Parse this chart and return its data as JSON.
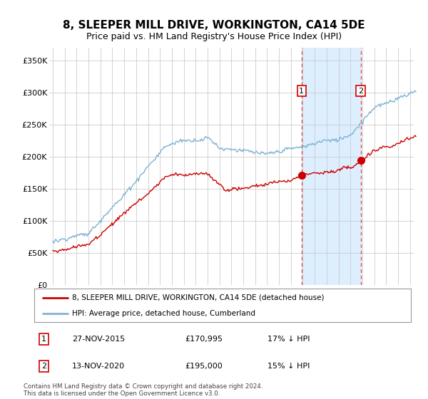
{
  "title": "8, SLEEPER MILL DRIVE, WORKINGTON, CA14 5DE",
  "subtitle": "Price paid vs. HM Land Registry's House Price Index (HPI)",
  "ylabel_ticks": [
    "£0",
    "£50K",
    "£100K",
    "£150K",
    "£200K",
    "£250K",
    "£300K",
    "£350K"
  ],
  "ylabel_values": [
    0,
    50000,
    100000,
    150000,
    200000,
    250000,
    300000,
    350000
  ],
  "ylim": [
    0,
    370000
  ],
  "xlim_start": 1994.7,
  "xlim_end": 2025.8,
  "purchase1_date": 2015.9,
  "purchase1_price": 170995,
  "purchase2_date": 2020.87,
  "purchase2_price": 195000,
  "hpi_color": "#7fb3d3",
  "price_color": "#cc0000",
  "shaded_region_color": "#ddeeff",
  "background_color": "#ffffff",
  "grid_color": "#cccccc",
  "legend_line1": "8, SLEEPER MILL DRIVE, WORKINGTON, CA14 5DE (detached house)",
  "legend_line2": "HPI: Average price, detached house, Cumberland",
  "table_row1_num": "1",
  "table_row1_date": "27-NOV-2015",
  "table_row1_price": "£170,995",
  "table_row1_hpi": "17% ↓ HPI",
  "table_row2_num": "2",
  "table_row2_date": "13-NOV-2020",
  "table_row2_price": "£195,000",
  "table_row2_hpi": "15% ↓ HPI",
  "footer": "Contains HM Land Registry data © Crown copyright and database right 2024.\nThis data is licensed under the Open Government Licence v3.0."
}
